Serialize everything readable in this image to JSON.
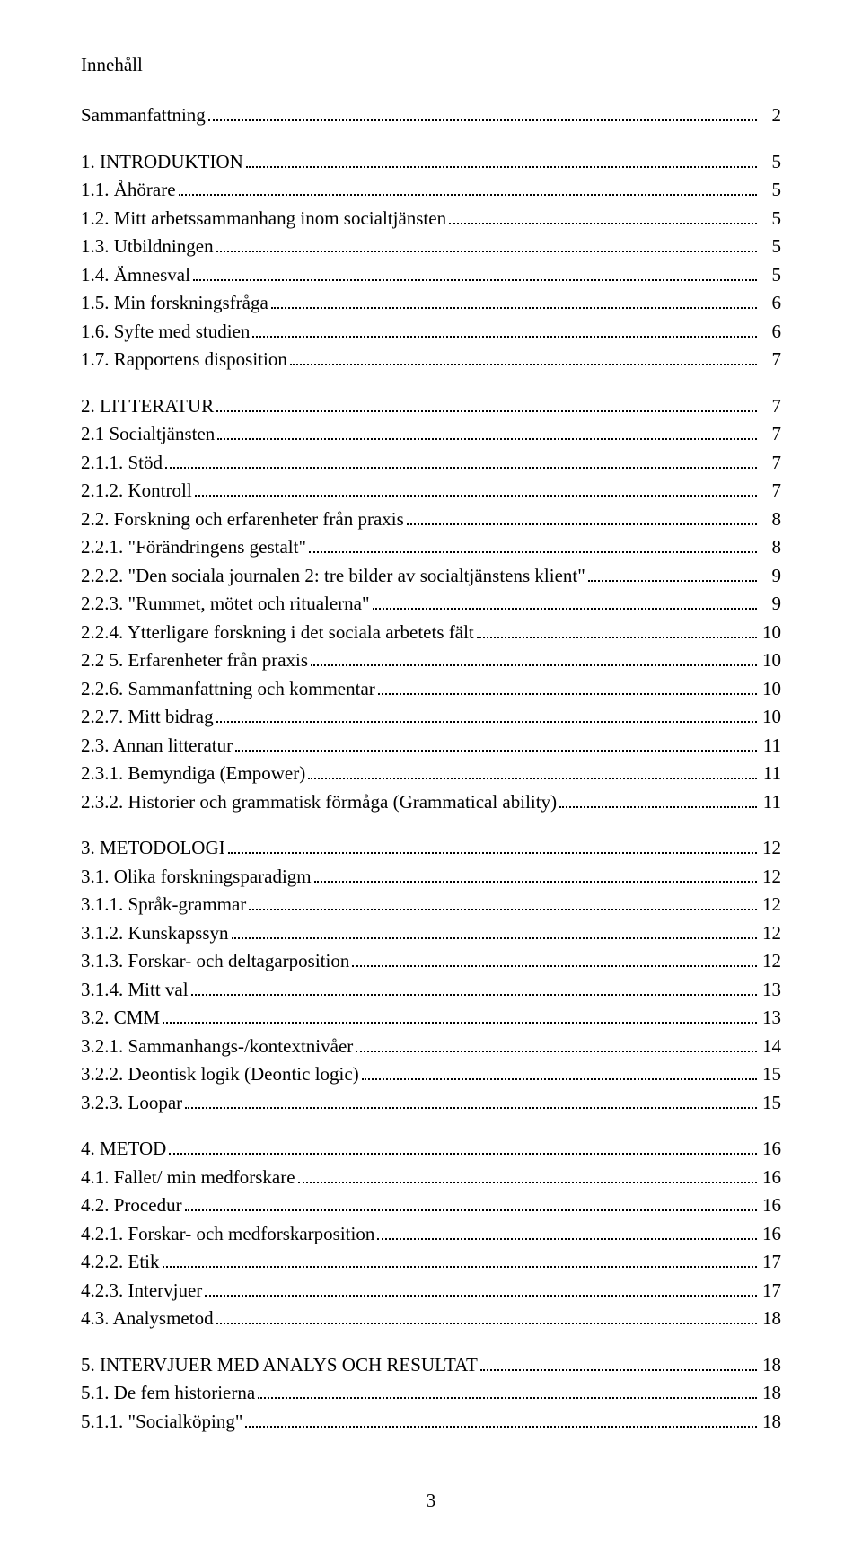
{
  "title": "Innehåll",
  "page_number": "3",
  "entries": [
    {
      "label": "Sammanfattning",
      "page": "2",
      "gap_after": true
    },
    {
      "label": "1.      INTRODUKTION",
      "page": "5"
    },
    {
      "label": "1.1.   Åhörare",
      "page": "5"
    },
    {
      "label": "1.2.   Mitt arbetssammanhang inom socialtjänsten",
      "page": "5"
    },
    {
      "label": "1.3.   Utbildningen",
      "page": "5"
    },
    {
      "label": "1.4.   Ämnesval",
      "page": "5"
    },
    {
      "label": "1.5.   Min forskningsfråga",
      "page": "6"
    },
    {
      "label": "1.6.   Syfte med studien",
      "page": "6"
    },
    {
      "label": "1.7.   Rapportens disposition",
      "page": "7",
      "gap_after": true
    },
    {
      "label": "2.       LITTERATUR",
      "page": "7"
    },
    {
      "label": "2.1     Socialtjänsten",
      "page": "7"
    },
    {
      "label": "2.1.1. Stöd",
      "page": "7"
    },
    {
      "label": "2.1.2. Kontroll",
      "page": "7"
    },
    {
      "label": "2.2.    Forskning och erfarenheter från praxis",
      "page": "8"
    },
    {
      "label": "2.2.1. \"Förändringens gestalt\"",
      "page": "8"
    },
    {
      "label": "2.2.2. \"Den sociala  journalen 2: tre bilder av socialtjänstens klient\"",
      "page": "9"
    },
    {
      "label": "2.2.3. \"Rummet, mötet och ritualerna\"",
      "page": "9"
    },
    {
      "label": "2.2.4.  Ytterligare forskning i det sociala arbetets fält",
      "page": "10"
    },
    {
      "label": "2.2 5.  Erfarenheter från praxis",
      "page": "10"
    },
    {
      "label": "2.2.6.  Sammanfattning och kommentar",
      "page": "10"
    },
    {
      "label": "2.2.7.  Mitt bidrag",
      "page": "10"
    },
    {
      "label": "2.3.    Annan litteratur",
      "page": "11"
    },
    {
      "label": "2.3.1. Bemyndiga (Empower)",
      "page": "11"
    },
    {
      "label": "2.3.2. Historier och grammatisk förmåga (Grammatical ability)",
      "page": "11",
      "gap_after": true
    },
    {
      "label": "3.       METODOLOGI",
      "page": "12"
    },
    {
      "label": "3.1.    Olika forskningsparadigm",
      "page": "12"
    },
    {
      "label": "3.1.1. Språk-grammar",
      "page": "12"
    },
    {
      "label": "3.1.2. Kunskapssyn",
      "page": "12"
    },
    {
      "label": "3.1.3. Forskar- och deltagarposition",
      "page": "12"
    },
    {
      "label": "3.1.4. Mitt val",
      "page": "13"
    },
    {
      "label": "3.2.   CMM",
      "page": "13"
    },
    {
      "label": "3.2.1.  Sammanhangs-/kontextnivåer",
      "page": "14"
    },
    {
      "label": "3.2.2.  Deontisk logik (Deontic logic)",
      "page": "15"
    },
    {
      "label": "3.2.3.  Loopar",
      "page": "15",
      "gap_after": true
    },
    {
      "label": "4.       METOD",
      "page": "16"
    },
    {
      "label": "4.1.    Fallet/ min medforskare",
      "page": "16"
    },
    {
      "label": "4.2.    Procedur",
      "page": "16"
    },
    {
      "label": "4.2.1.  Forskar- och medforskarposition",
      "page": "16"
    },
    {
      "label": "4.2.2.  Etik",
      "page": "17"
    },
    {
      "label": "4.2.3.  Intervjuer",
      "page": "17"
    },
    {
      "label": "4.3.    Analysmetod",
      "page": "18",
      "gap_after": true
    },
    {
      "label": "5.       INTERVJUER MED ANALYS OCH  RESULTAT",
      "page": "18"
    },
    {
      "label": "5.1.    De fem historierna",
      "page": "18"
    },
    {
      "label": "5.1.1. \"Socialköping\"",
      "page": "18"
    }
  ]
}
